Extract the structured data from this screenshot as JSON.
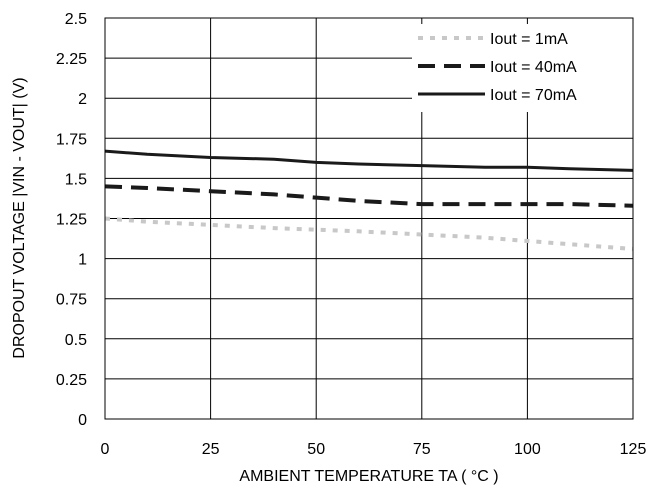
{
  "chart_data": {
    "type": "line",
    "title": "",
    "xlabel": "AMBIENT TEMPERATURE TA ( °C )",
    "ylabel": "DROPOUT VOLTAGE |VIN - VOUT| (V)",
    "xlim": [
      0,
      125
    ],
    "ylim": [
      0,
      2.5
    ],
    "x_ticks": [
      "0",
      "25",
      "50",
      "75",
      "100",
      "125"
    ],
    "y_ticks": [
      "0",
      "0.25",
      "0.5",
      "0.75",
      "1",
      "1.25",
      "1.5",
      "1.75",
      "2",
      "2.25",
      "2.5"
    ],
    "grid": true,
    "legend_position": "top-right",
    "series": [
      {
        "name": "Iout = 1mA",
        "style": "dotted",
        "color": "#c8c8c8",
        "x": [
          0,
          10,
          25,
          40,
          50,
          60,
          75,
          90,
          100,
          110,
          125
        ],
        "y": [
          1.25,
          1.23,
          1.21,
          1.19,
          1.18,
          1.17,
          1.15,
          1.13,
          1.11,
          1.09,
          1.06
        ]
      },
      {
        "name": "Iout = 40mA",
        "style": "dashed",
        "color": "#1a1a1a",
        "x": [
          0,
          10,
          25,
          40,
          50,
          60,
          75,
          90,
          100,
          110,
          125
        ],
        "y": [
          1.45,
          1.44,
          1.42,
          1.4,
          1.38,
          1.36,
          1.34,
          1.34,
          1.34,
          1.34,
          1.33
        ]
      },
      {
        "name": "Iout = 70mA",
        "style": "solid",
        "color": "#1a1a1a",
        "x": [
          0,
          10,
          25,
          40,
          50,
          60,
          75,
          90,
          100,
          110,
          125
        ],
        "y": [
          1.67,
          1.65,
          1.63,
          1.62,
          1.6,
          1.59,
          1.58,
          1.57,
          1.57,
          1.56,
          1.55
        ]
      }
    ]
  }
}
